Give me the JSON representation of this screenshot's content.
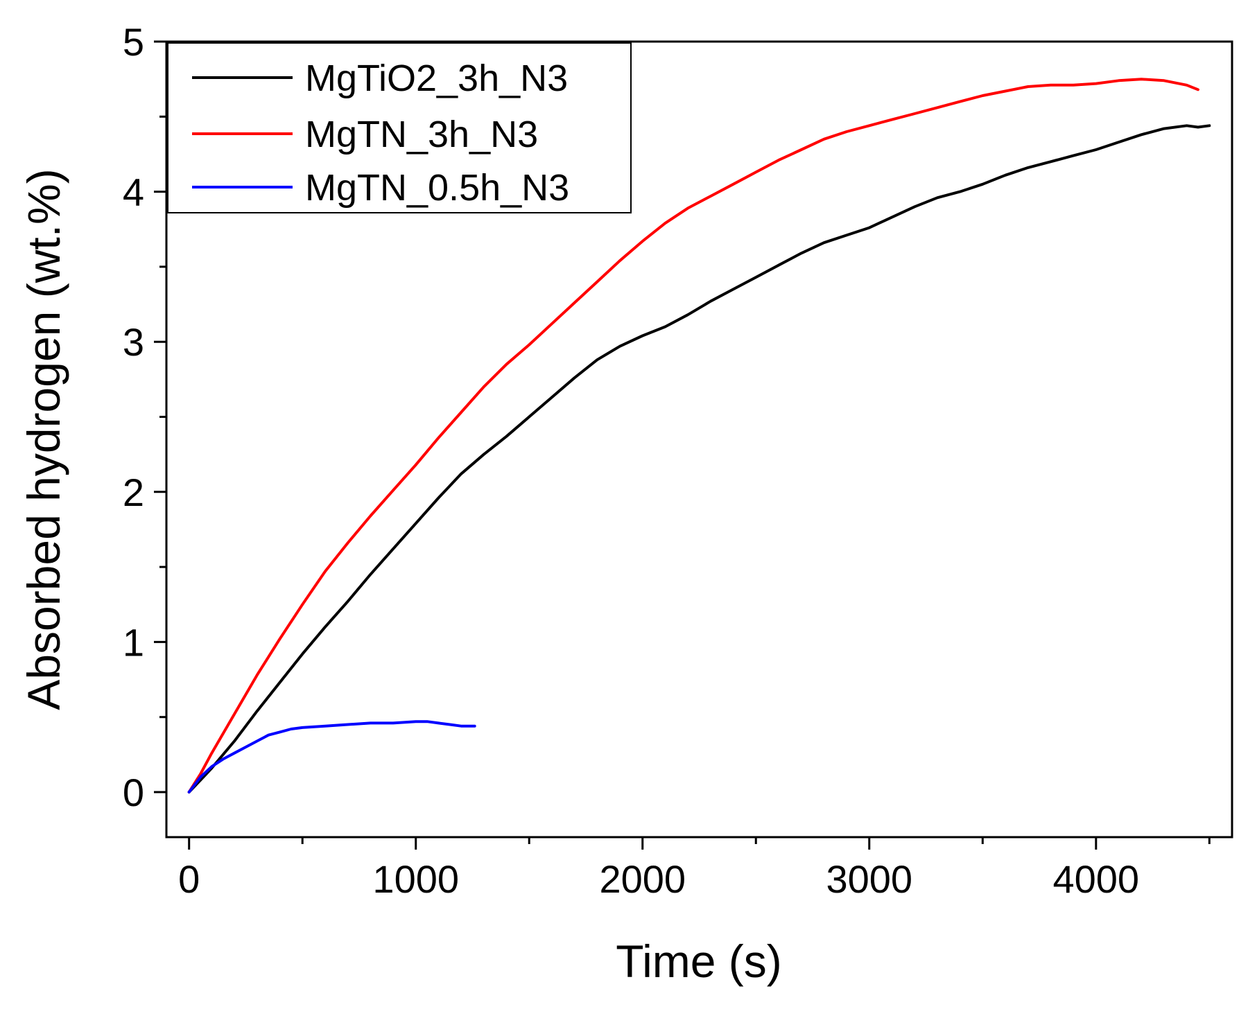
{
  "chart_data": {
    "type": "line",
    "title": "",
    "xlabel": "Time (s)",
    "ylabel": "Absorbed hydrogen (wt.%)",
    "xlim": [
      -100,
      4600
    ],
    "ylim": [
      -0.3,
      5
    ],
    "xticks": [
      0,
      1000,
      2000,
      3000,
      4000
    ],
    "xtick_labels": [
      "0",
      "1000",
      "2000",
      "3000",
      "4000"
    ],
    "xminor_step": 500,
    "yticks": [
      0,
      1,
      2,
      3,
      4,
      5
    ],
    "ytick_labels": [
      "0",
      "1",
      "2",
      "3",
      "4",
      "5"
    ],
    "yminor_step": 0.5,
    "grid": false,
    "legend_position": "top-left",
    "series": [
      {
        "name": "MgTiO2_3h_N3",
        "color": "#000000",
        "x": [
          0,
          50,
          100,
          200,
          300,
          400,
          500,
          600,
          700,
          800,
          900,
          1000,
          1100,
          1200,
          1300,
          1400,
          1500,
          1600,
          1700,
          1800,
          1900,
          2000,
          2100,
          2200,
          2300,
          2400,
          2500,
          2600,
          2700,
          2800,
          2900,
          3000,
          3100,
          3200,
          3300,
          3400,
          3500,
          3600,
          3700,
          3800,
          3900,
          4000,
          4100,
          4200,
          4300,
          4400,
          4450,
          4500
        ],
        "y": [
          0.0,
          0.08,
          0.16,
          0.34,
          0.54,
          0.73,
          0.92,
          1.1,
          1.27,
          1.45,
          1.62,
          1.79,
          1.96,
          2.12,
          2.25,
          2.37,
          2.5,
          2.63,
          2.76,
          2.88,
          2.97,
          3.04,
          3.1,
          3.18,
          3.27,
          3.35,
          3.43,
          3.51,
          3.59,
          3.66,
          3.71,
          3.76,
          3.83,
          3.9,
          3.96,
          4.0,
          4.05,
          4.11,
          4.16,
          4.2,
          4.24,
          4.28,
          4.33,
          4.38,
          4.42,
          4.44,
          4.43,
          4.44
        ]
      },
      {
        "name": "MgTN_3h_N3",
        "color": "#ff0000",
        "x": [
          0,
          50,
          100,
          200,
          300,
          400,
          500,
          600,
          700,
          800,
          900,
          1000,
          1100,
          1200,
          1300,
          1400,
          1500,
          1600,
          1700,
          1800,
          1900,
          2000,
          2100,
          2200,
          2300,
          2400,
          2500,
          2600,
          2700,
          2800,
          2900,
          3000,
          3100,
          3200,
          3300,
          3400,
          3500,
          3600,
          3700,
          3800,
          3900,
          4000,
          4100,
          4200,
          4300,
          4400,
          4450
        ],
        "y": [
          0.0,
          0.12,
          0.26,
          0.52,
          0.78,
          1.02,
          1.25,
          1.47,
          1.66,
          1.84,
          2.01,
          2.18,
          2.36,
          2.53,
          2.7,
          2.85,
          2.98,
          3.12,
          3.26,
          3.4,
          3.54,
          3.67,
          3.79,
          3.89,
          3.97,
          4.05,
          4.13,
          4.21,
          4.28,
          4.35,
          4.4,
          4.44,
          4.48,
          4.52,
          4.56,
          4.6,
          4.64,
          4.67,
          4.7,
          4.71,
          4.71,
          4.72,
          4.74,
          4.75,
          4.74,
          4.71,
          4.68
        ]
      },
      {
        "name": "MgTN_0.5h_N3",
        "color": "#0000ff",
        "x": [
          0,
          50,
          100,
          150,
          200,
          250,
          300,
          350,
          400,
          450,
          500,
          600,
          700,
          800,
          900,
          1000,
          1050,
          1100,
          1150,
          1200,
          1260
        ],
        "y": [
          0.0,
          0.1,
          0.17,
          0.22,
          0.26,
          0.3,
          0.34,
          0.38,
          0.4,
          0.42,
          0.43,
          0.44,
          0.45,
          0.46,
          0.46,
          0.47,
          0.47,
          0.46,
          0.45,
          0.44,
          0.44
        ]
      }
    ]
  }
}
